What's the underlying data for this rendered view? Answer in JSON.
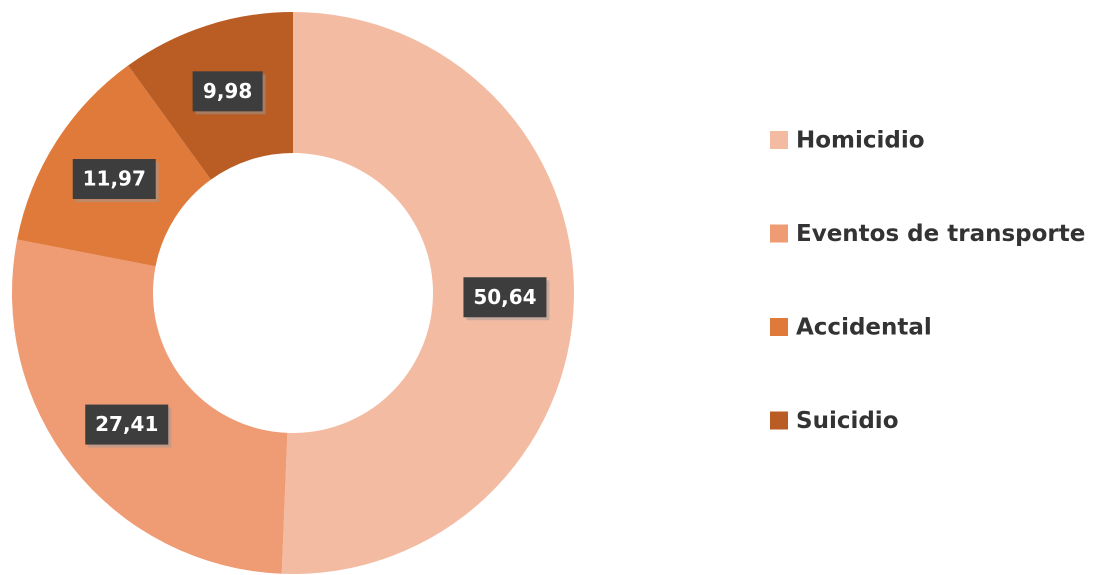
{
  "chart_data": {
    "type": "donut",
    "categories": [
      "Homicidio",
      "Eventos de transporte",
      "Accidental",
      "Suicidio"
    ],
    "values": [
      50.64,
      27.41,
      11.97,
      9.98
    ],
    "value_labels": [
      "50,64",
      "27,41",
      "11,97",
      "9,98"
    ],
    "colors": [
      "#f4bba3",
      "#ef9b74",
      "#e07a3a",
      "#b95d24"
    ],
    "legend": "right"
  }
}
